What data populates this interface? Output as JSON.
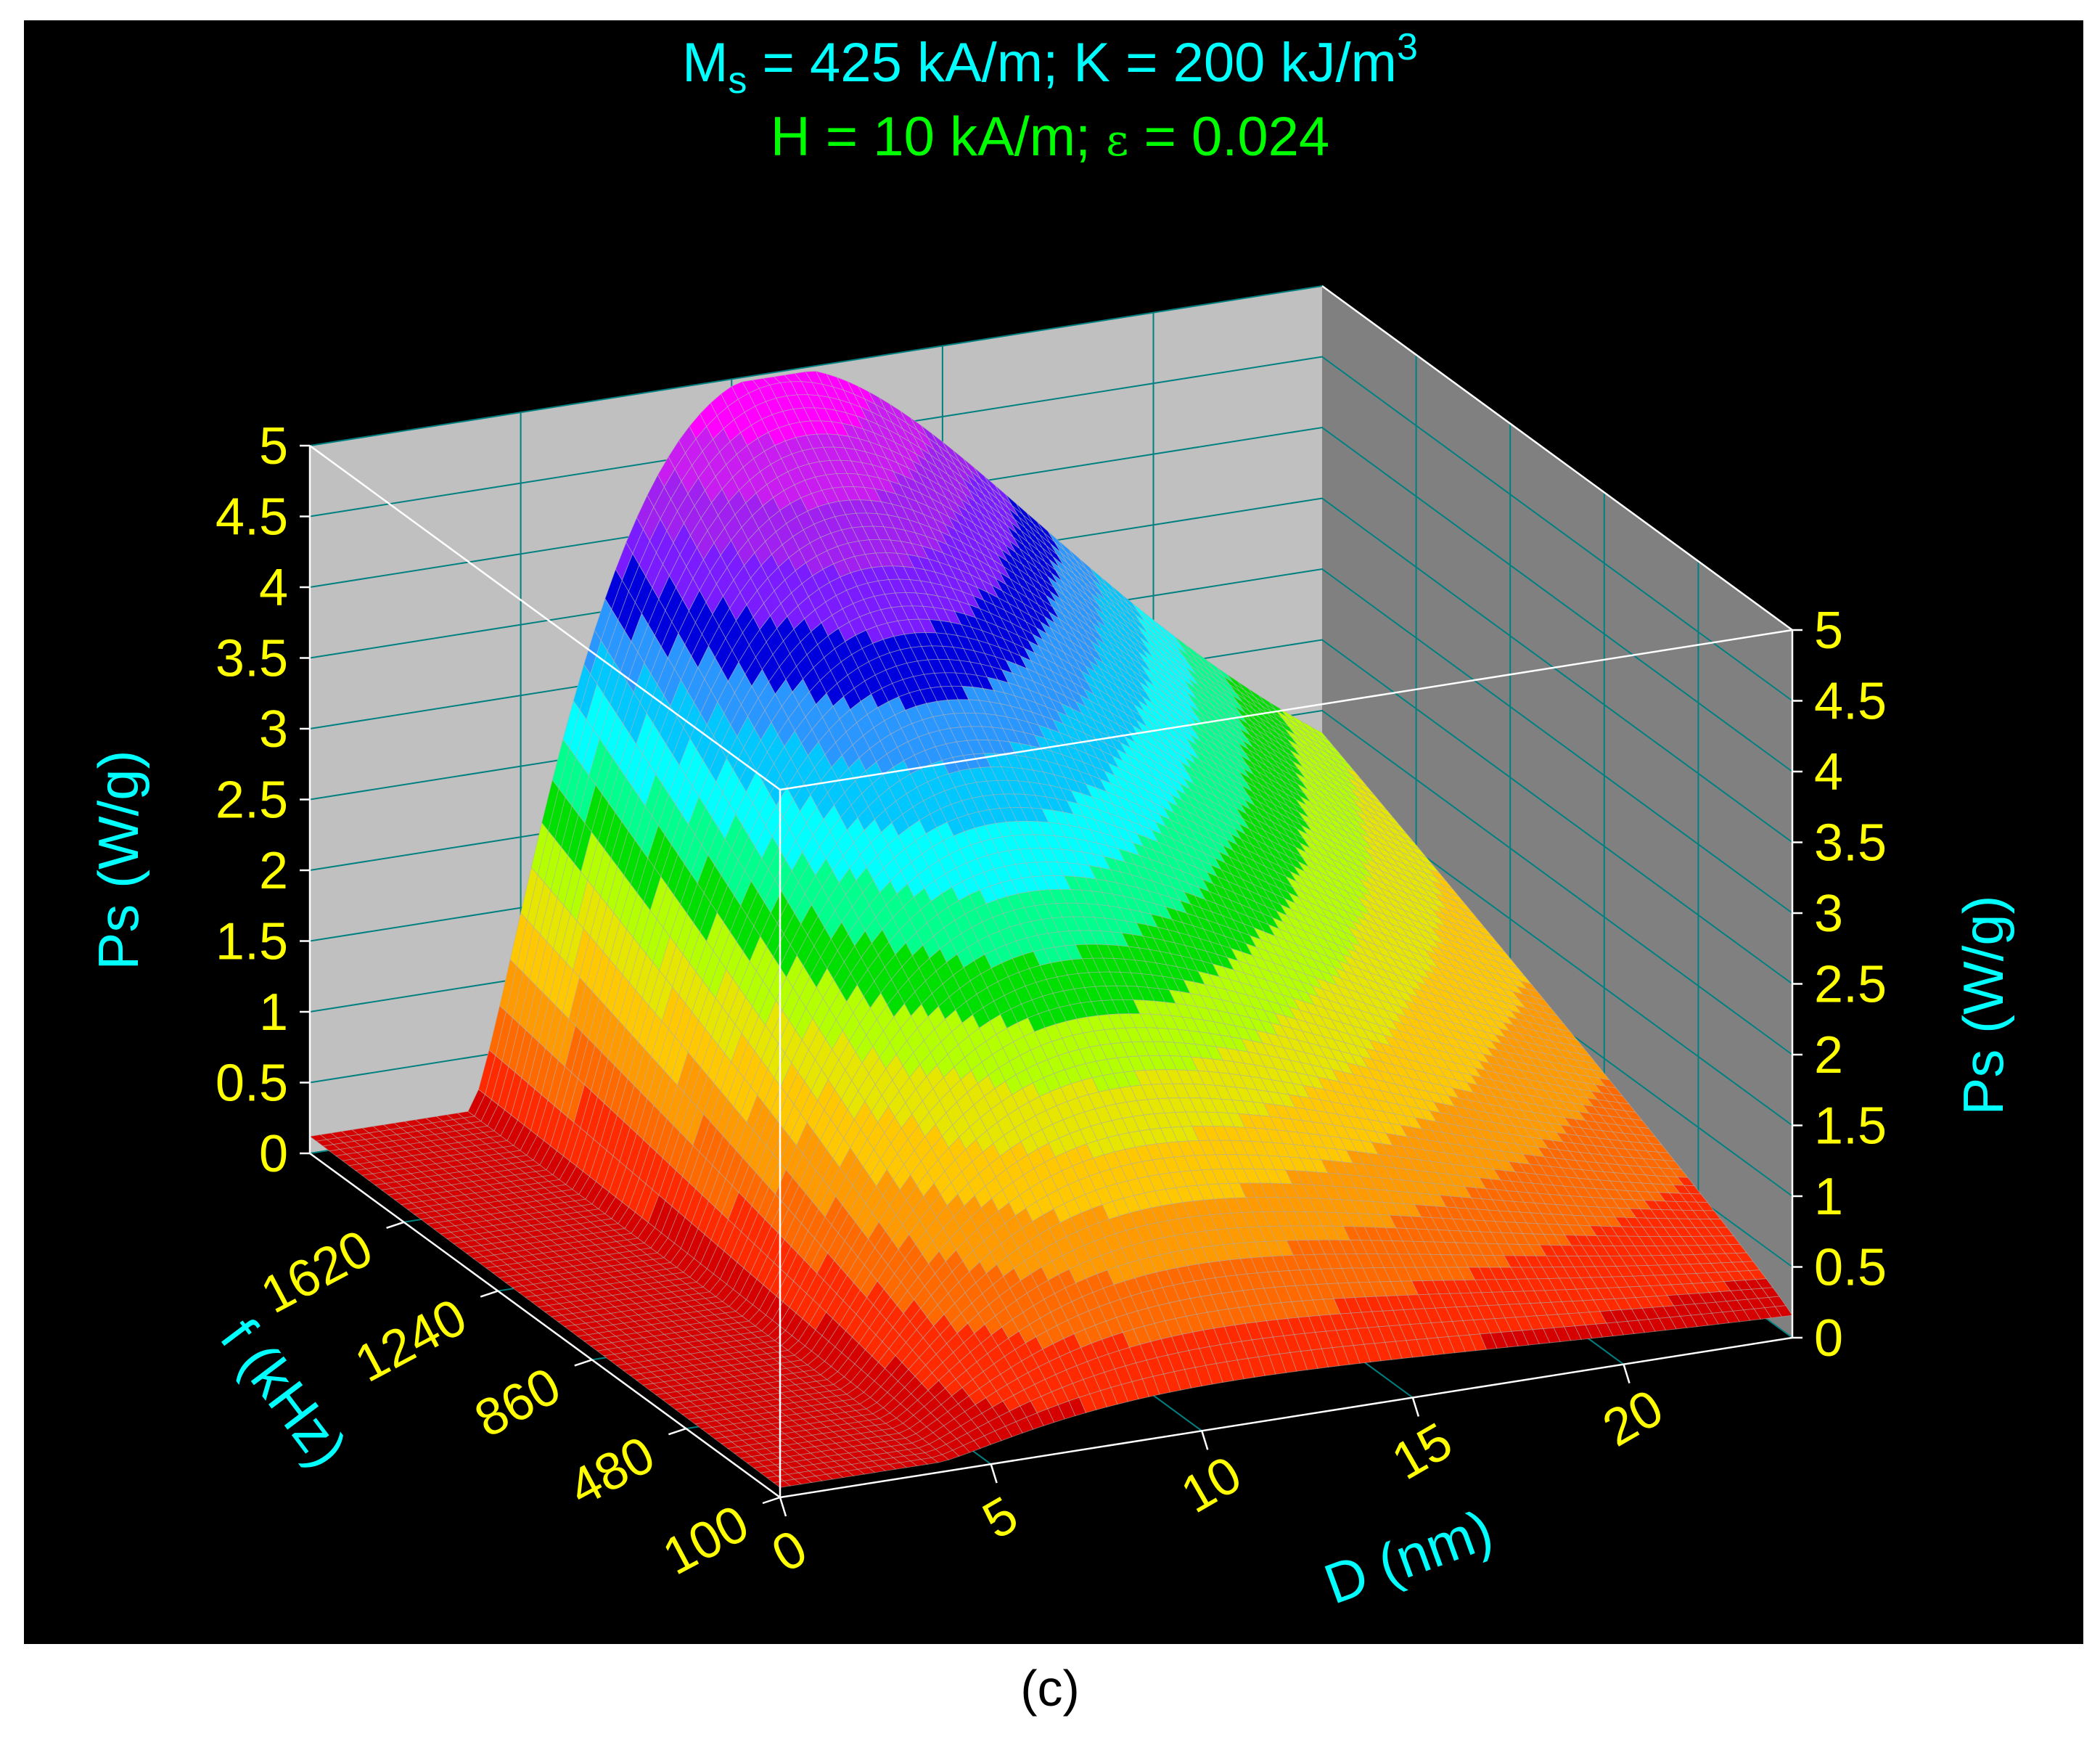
{
  "chart_data": {
    "type": "surface3d",
    "title_line1": {
      "ms_symbol": "M",
      "ms_sub": "s",
      "ms_rest": " = 425 kA/m;  K = 200 kJ/m",
      "k_sup": "3"
    },
    "title_line2": {
      "before": "H = 10 kA/m;  ",
      "epsilon": "ε",
      "after": " = 0.024"
    },
    "xlabel": "D (nm)",
    "ylabel": "f (kHz)",
    "zlabel": "Ps (W/g)",
    "x_range": [
      0,
      24
    ],
    "y_range": [
      100,
      2000
    ],
    "z_range": [
      0,
      5
    ],
    "x_ticks": [
      "0",
      "5",
      "10",
      "15",
      "20"
    ],
    "y_ticks": [
      "100",
      "480",
      "860",
      "1240",
      "1620"
    ],
    "z_ticks": [
      "0",
      "0.5",
      "1",
      "1.5",
      "2",
      "2.5",
      "3",
      "3.5",
      "4",
      "4.5",
      "5"
    ],
    "surface_model": "Ps(D, f): onset near D = 5 nm, peak ~4.9 W/g at D ≈ 11 nm and f = 2000 kHz, decaying to ~1.8 W/g at D = 24 nm",
    "color_bands": [
      "#d50000",
      "#ff2a00",
      "#ff6a00",
      "#ff9a00",
      "#ffc800",
      "#e6e600",
      "#b4ff00",
      "#00e000",
      "#00ff8c",
      "#00ffff",
      "#00c8ff",
      "#2a96ff",
      "#0000dc",
      "#7a1cff",
      "#a020f0",
      "#c81cf0",
      "#ff00ff"
    ],
    "caption": "(c)"
  },
  "colors": {
    "title_line1": "#00ffff",
    "title_line2": "#00ff00",
    "tick": "#ffff00",
    "axis_label": "#00ffff",
    "wall": "#c0c0c0",
    "wall_right": "#808080",
    "grid": "#008080"
  }
}
